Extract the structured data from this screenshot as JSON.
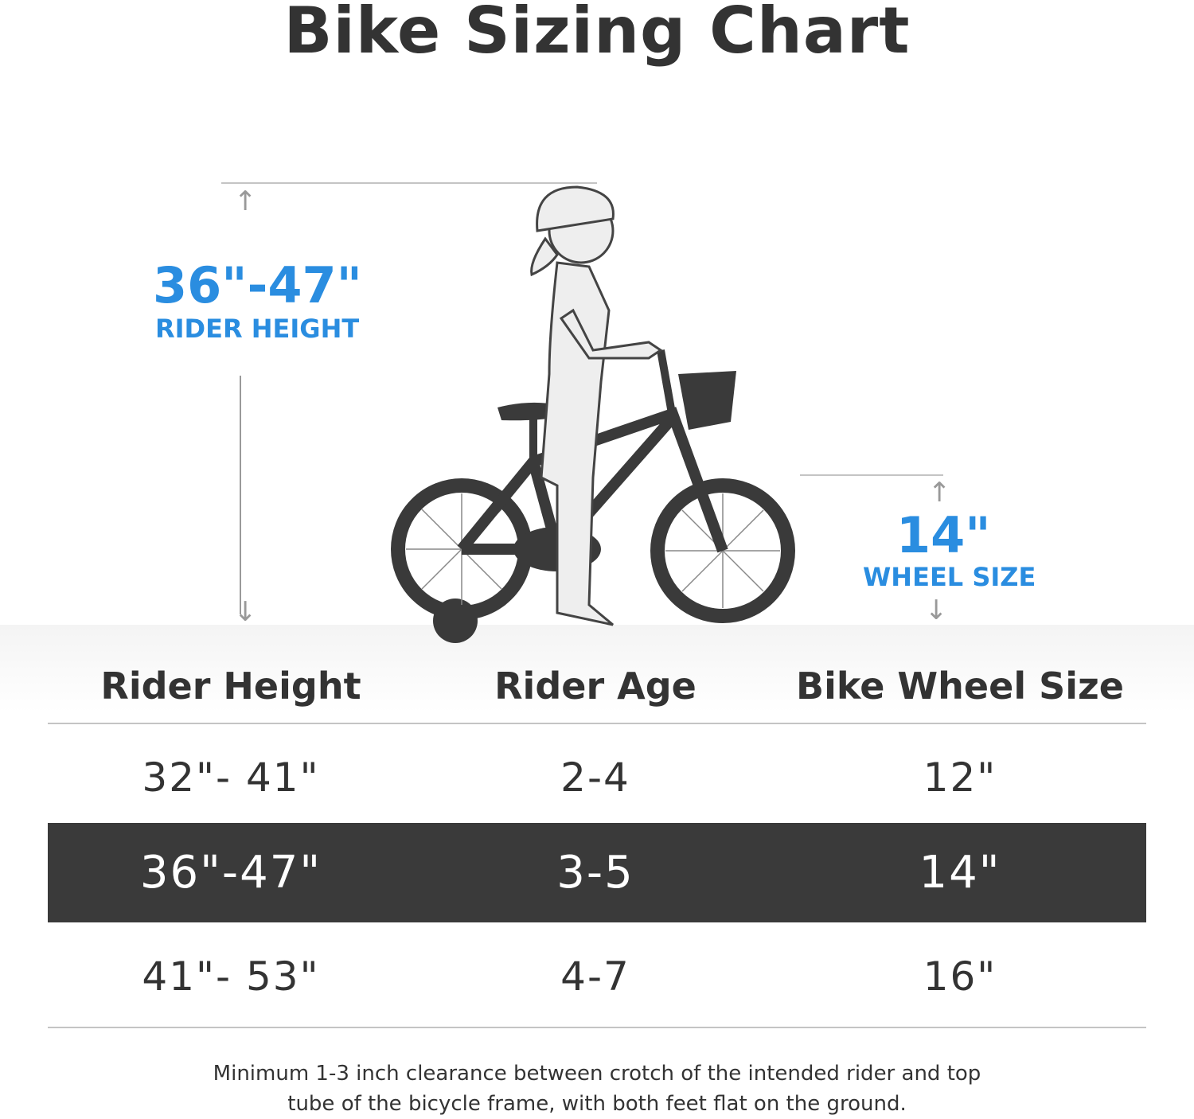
{
  "title": "Bike Sizing Chart",
  "rider_height_callout": {
    "value": "36\"-47\"",
    "label": "RIDER HEIGHT"
  },
  "wheel_size_callout": {
    "value": "14\"",
    "label": "WHEEL SIZE"
  },
  "colors": {
    "accent": "#2a8de0",
    "highlight_row": "#3a3a3a",
    "text": "#333333"
  },
  "table": {
    "headers": [
      "Rider Height",
      "Rider Age",
      "Bike Wheel Size"
    ],
    "rows": [
      {
        "height": "32\"- 41\"",
        "age": "2-4",
        "wheel": "12\"",
        "highlighted": false
      },
      {
        "height": "36\"-47\"",
        "age": "3-5",
        "wheel": "14\"",
        "highlighted": true
      },
      {
        "height": "41\"- 53\"",
        "age": "4-7",
        "wheel": "16\"",
        "highlighted": false
      }
    ]
  },
  "note": {
    "line1": "Minimum 1-3 inch clearance between crotch of the intended rider and top",
    "line2": "tube of the bicycle frame, with both feet flat on the ground."
  }
}
